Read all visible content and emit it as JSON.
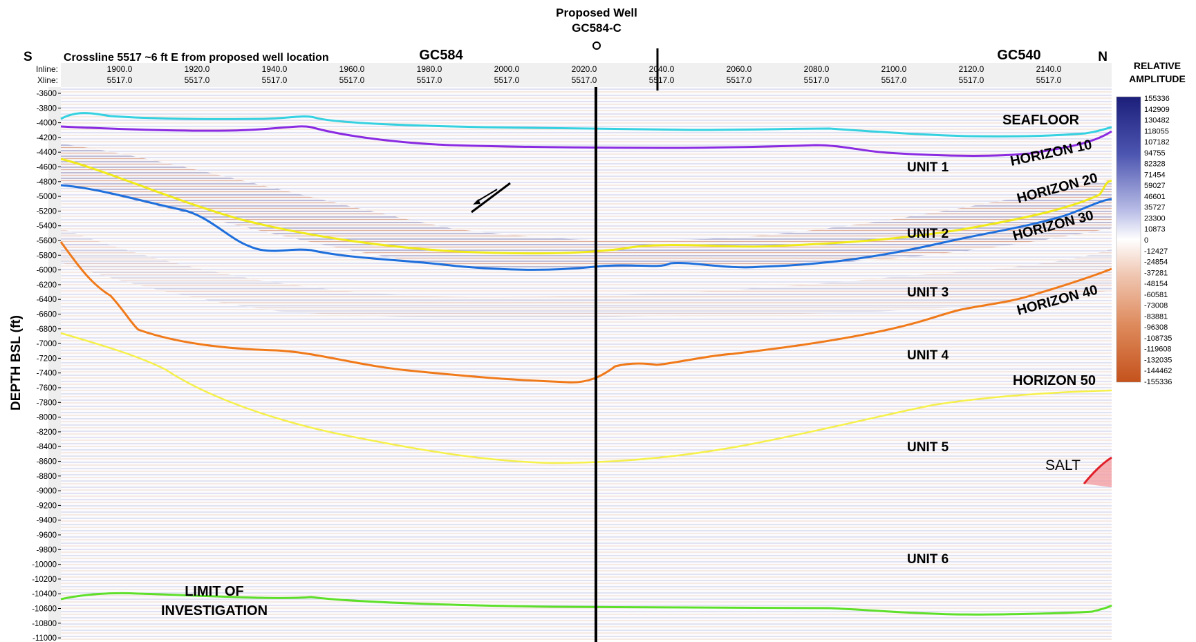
{
  "well": {
    "label": "Proposed Well",
    "name": "GC584-C"
  },
  "header": {
    "left_dir": "S",
    "right_dir": "N",
    "title": "Crossline 5517 ~6 ft E from proposed well location",
    "block_left": "GC584",
    "block_right": "GC540",
    "inline_label": "Inline:",
    "xline_label": "Xline:",
    "inlines": [
      "1900.0",
      "1920.0",
      "1940.0",
      "1960.0",
      "1980.0",
      "2000.0",
      "2020.0",
      "2040.0",
      "2060.0",
      "2080.0",
      "2100.0",
      "2120.0",
      "2140.0"
    ],
    "xline_value": "5517.0"
  },
  "y_axis": {
    "label": "DEPTH BSL (ft)",
    "ticks": [
      "-3600",
      "-3800",
      "-4000",
      "-4200",
      "-4400",
      "-4600",
      "-4800",
      "-5000",
      "-5200",
      "-5400",
      "-5600",
      "-5800",
      "-6000",
      "-6200",
      "-6400",
      "-6600",
      "-6800",
      "-7000",
      "-7200",
      "-7400",
      "-7600",
      "-7800",
      "-8000",
      "-8200",
      "-8400",
      "-8600",
      "-8800",
      "-9000",
      "-9200",
      "-9400",
      "-9600",
      "-9800",
      "-10000",
      "-10200",
      "-10400",
      "-10600",
      "-10800",
      "-11000"
    ]
  },
  "colorbar": {
    "title_line1": "RELATIVE",
    "title_line2": "AMPLITUDE",
    "ticks": [
      "155336",
      "142909",
      "130482",
      "118055",
      "107182",
      "94755",
      "82328",
      "71454",
      "59027",
      "46601",
      "35727",
      "23300",
      "10873",
      "0",
      "-12427",
      "-24854",
      "-37281",
      "-48154",
      "-60581",
      "-73008",
      "-83881",
      "-96308",
      "-108735",
      "-119608",
      "-132035",
      "-144462",
      "-155336"
    ],
    "color_top": "#1c1f7a",
    "color_mid": "#ffffff",
    "color_bottom": "#c4521c"
  },
  "labels": {
    "seafloor": "SEAFLOOR",
    "h10": "HORIZON 10",
    "h20": "HORIZON 20",
    "h30": "HORIZON 30",
    "h40": "HORIZON 40",
    "h50": "HORIZON 50",
    "unit1": "UNIT 1",
    "unit2": "UNIT 2",
    "unit3": "UNIT 3",
    "unit4": "UNIT 4",
    "unit5": "UNIT 5",
    "unit6": "UNIT 6",
    "salt": "SALT",
    "limit1": "LIMIT OF",
    "limit2": "INVESTIGATION"
  },
  "horizon_colors": {
    "seafloor": "#35d1e0",
    "h10": "#8a2be2",
    "h20": "#f0ea1a",
    "h30": "#1e6fdc",
    "h40": "#f07a1a",
    "h50": "#f5f04a",
    "limit": "#5ee02a",
    "salt": "#e0202a"
  }
}
